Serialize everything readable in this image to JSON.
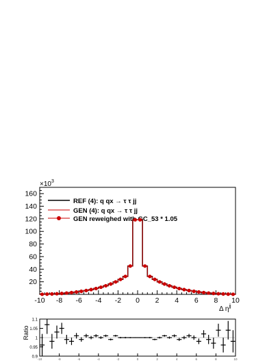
{
  "chart_data": [
    {
      "type": "line",
      "title": "",
      "xlabel": "Δ η",
      "xlabel_superscript": "jj",
      "ylabel": "",
      "exponent_label_base": "×10",
      "exponent_label_power": "3",
      "xlim": [
        -10,
        10
      ],
      "ylim": [
        0,
        170
      ],
      "x_ticks": [
        "-10",
        "-8",
        "-6",
        "-4",
        "-2",
        "0",
        "2",
        "4",
        "6",
        "8",
        "10"
      ],
      "y_ticks": [
        "20",
        "40",
        "60",
        "80",
        "100",
        "120",
        "140",
        "160"
      ],
      "grid": false,
      "legend_placement": "top-left",
      "x_bin_centers": [
        -9.75,
        -9.25,
        -8.75,
        -8.25,
        -7.75,
        -7.25,
        -6.75,
        -6.25,
        -5.75,
        -5.25,
        -4.75,
        -4.25,
        -3.75,
        -3.25,
        -2.75,
        -2.25,
        -1.75,
        -1.25,
        -0.75,
        -0.25,
        0.25,
        0.75,
        1.25,
        1.75,
        2.25,
        2.75,
        3.25,
        3.75,
        4.25,
        4.75,
        5.25,
        5.75,
        6.25,
        6.75,
        7.25,
        7.75,
        8.25,
        8.75,
        9.25,
        9.75
      ],
      "series": [
        {
          "name": "REF (4): q qx → τ τ jj",
          "color": "#000000",
          "style": "step",
          "values": [
            0.2,
            0.4,
            0.7,
            1.0,
            1.5,
            2.1,
            2.9,
            3.8,
            4.9,
            6.1,
            7.6,
            9.3,
            11.4,
            13.7,
            16.5,
            19.8,
            23.8,
            28.5,
            45.0,
            118.5,
            118.5,
            45.0,
            28.5,
            23.8,
            19.8,
            16.5,
            13.7,
            11.4,
            9.3,
            7.6,
            6.1,
            4.9,
            3.8,
            2.9,
            2.1,
            1.5,
            1.0,
            0.7,
            0.4,
            0.2
          ]
        },
        {
          "name": "GEN (4): q qx → τ τ jj",
          "color": "#cc0000",
          "style": "step",
          "values": [
            0.2,
            0.4,
            0.7,
            1.0,
            1.5,
            2.1,
            2.9,
            3.8,
            4.9,
            6.1,
            7.6,
            9.3,
            11.4,
            13.7,
            16.5,
            19.8,
            23.8,
            28.5,
            45.0,
            118.5,
            118.5,
            45.0,
            28.5,
            23.8,
            19.8,
            16.5,
            13.7,
            11.4,
            9.3,
            7.6,
            6.1,
            4.9,
            3.8,
            2.9,
            2.1,
            1.5,
            1.0,
            0.7,
            0.4,
            0.2
          ]
        },
        {
          "name": "GEN reweighed with GC_53 * 1.05",
          "color": "#cc0000",
          "style": "markers",
          "values": [
            0.2,
            0.4,
            0.7,
            1.0,
            1.5,
            2.1,
            2.9,
            3.8,
            4.9,
            6.1,
            7.6,
            9.3,
            11.4,
            13.7,
            16.5,
            19.8,
            23.8,
            28.5,
            45.0,
            118.5,
            118.5,
            45.0,
            28.5,
            23.8,
            19.8,
            16.5,
            13.7,
            11.4,
            9.3,
            7.6,
            6.1,
            4.9,
            3.8,
            2.9,
            2.1,
            1.5,
            1.0,
            0.7,
            0.4,
            0.2
          ]
        }
      ]
    },
    {
      "type": "scatter",
      "title": "",
      "ylabel": "Ratio",
      "xlim": [
        -10,
        10
      ],
      "ylim": [
        0.9,
        1.1
      ],
      "x_ticks": [
        "-10",
        "-8",
        "-6",
        "-4",
        "-2",
        "0",
        "2",
        "4",
        "6",
        "8",
        "10"
      ],
      "y_ticks": [
        "0.9",
        "0.95",
        "1",
        "1.05",
        "1.1"
      ],
      "x": [
        -9.75,
        -9.25,
        -8.75,
        -8.25,
        -7.75,
        -7.25,
        -6.75,
        -6.25,
        -5.75,
        -5.25,
        -4.75,
        -4.25,
        -3.75,
        -3.25,
        -2.75,
        -2.25,
        -1.75,
        -1.25,
        -0.75,
        -0.25,
        0.25,
        0.75,
        1.25,
        1.75,
        2.25,
        2.75,
        3.25,
        3.75,
        4.25,
        4.75,
        5.25,
        5.75,
        6.25,
        6.75,
        7.25,
        7.75,
        8.25,
        8.75,
        9.25,
        9.75
      ],
      "values": [
        0.96,
        1.07,
        0.98,
        1.03,
        1.05,
        0.99,
        0.98,
        1.01,
        0.99,
        1.01,
        1.0,
        1.01,
        1.0,
        1.01,
        0.99,
        1.01,
        1.0,
        1.0,
        1.0,
        1.0,
        1.0,
        1.0,
        1.0,
        0.99,
        1.0,
        1.01,
        1.0,
        1.01,
        0.99,
        1.0,
        1.01,
        1.0,
        0.98,
        1.02,
        0.99,
        0.97,
        1.04,
        0.96,
        1.04,
        0.98
      ],
      "errors": [
        0.06,
        0.05,
        0.04,
        0.035,
        0.03,
        0.025,
        0.02,
        0.015,
        0.012,
        0.01,
        0.009,
        0.008,
        0.007,
        0.006,
        0.005,
        0.005,
        0.004,
        0.004,
        0.003,
        0.002,
        0.002,
        0.003,
        0.004,
        0.004,
        0.005,
        0.005,
        0.006,
        0.007,
        0.008,
        0.009,
        0.01,
        0.012,
        0.015,
        0.02,
        0.025,
        0.03,
        0.035,
        0.04,
        0.05,
        0.06
      ],
      "reference_line": 1.0
    }
  ]
}
